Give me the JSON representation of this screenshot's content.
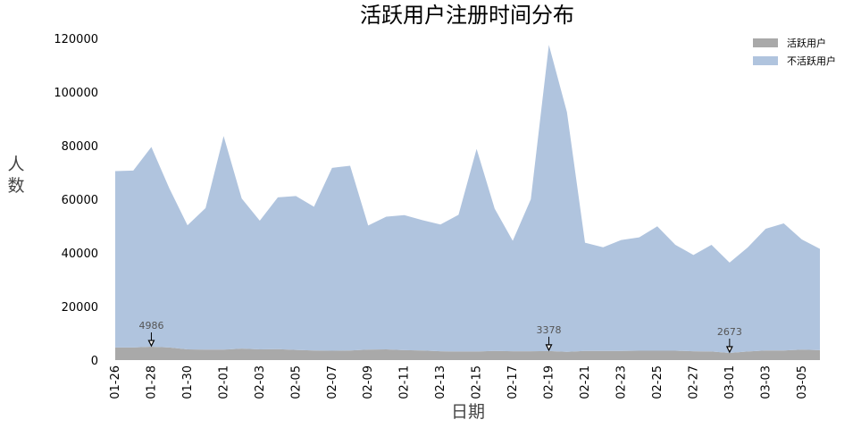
{
  "chart_data": {
    "type": "area",
    "stacked": true,
    "title": "活跃用户注册时间分布",
    "xlabel": "日期",
    "ylabel": "人数",
    "ylim": [
      0,
      120000
    ],
    "yticks": [
      0,
      20000,
      40000,
      60000,
      80000,
      100000,
      120000
    ],
    "grid": false,
    "legend_position": "top-right",
    "x": [
      "01-26",
      "01-27",
      "01-28",
      "01-29",
      "01-30",
      "01-31",
      "02-01",
      "02-02",
      "02-03",
      "02-04",
      "02-05",
      "02-06",
      "02-07",
      "02-08",
      "02-09",
      "02-10",
      "02-11",
      "02-12",
      "02-13",
      "02-14",
      "02-15",
      "02-16",
      "02-17",
      "02-18",
      "02-19",
      "02-20",
      "02-21",
      "02-22",
      "02-23",
      "02-24",
      "02-25",
      "02-26",
      "02-27",
      "02-28",
      "03-01",
      "03-02",
      "03-03",
      "03-04",
      "03-05",
      "03-06"
    ],
    "xtick_labels": [
      "01-26",
      "01-28",
      "01-30",
      "02-01",
      "02-03",
      "02-05",
      "02-07",
      "02-09",
      "02-11",
      "02-13",
      "02-15",
      "02-17",
      "02-19",
      "02-21",
      "02-23",
      "02-25",
      "02-27",
      "03-01",
      "03-03",
      "03-05"
    ],
    "series": [
      {
        "name": "活跃用户",
        "color": "#a9a9a9",
        "values": [
          4700,
          4700,
          4986,
          4700,
          4000,
          3900,
          3900,
          4300,
          4000,
          4100,
          3800,
          3600,
          3500,
          3600,
          3900,
          4000,
          3700,
          3600,
          3300,
          3200,
          3200,
          3400,
          3300,
          3300,
          3378,
          3100,
          3400,
          3400,
          3400,
          3500,
          3500,
          3500,
          3300,
          3200,
          2673,
          3200,
          3600,
          3600,
          3900,
          3700
        ]
      },
      {
        "name": "不活跃用户",
        "color": "#b0c4de",
        "values": [
          65800,
          66000,
          74500,
          59300,
          46300,
          52800,
          79700,
          56000,
          48000,
          56600,
          57400,
          53600,
          68200,
          68900,
          46300,
          49500,
          50400,
          48600,
          47300,
          51000,
          75600,
          53100,
          41200,
          56700,
          114200,
          89400,
          40400,
          38700,
          41400,
          42300,
          46400,
          39500,
          35900,
          39800,
          33700,
          38800,
          45400,
          47400,
          41100,
          37800
        ]
      }
    ],
    "annotations": [
      {
        "x": "01-28",
        "value": 4986,
        "label": "4986"
      },
      {
        "x": "02-19",
        "value": 3378,
        "label": "3378"
      },
      {
        "x": "03-01",
        "value": 2673,
        "label": "2673"
      }
    ]
  }
}
